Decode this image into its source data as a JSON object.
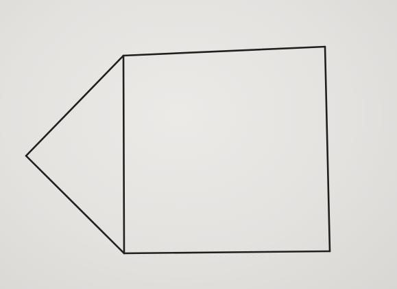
{
  "figure": {
    "description_visible_text": "",
    "shapes": [
      {
        "kind": "triangle",
        "attached_to": "square"
      },
      {
        "kind": "square"
      }
    ],
    "colors": {
      "paper": "#e6e4e1",
      "ink": "#1f1f1f"
    }
  }
}
